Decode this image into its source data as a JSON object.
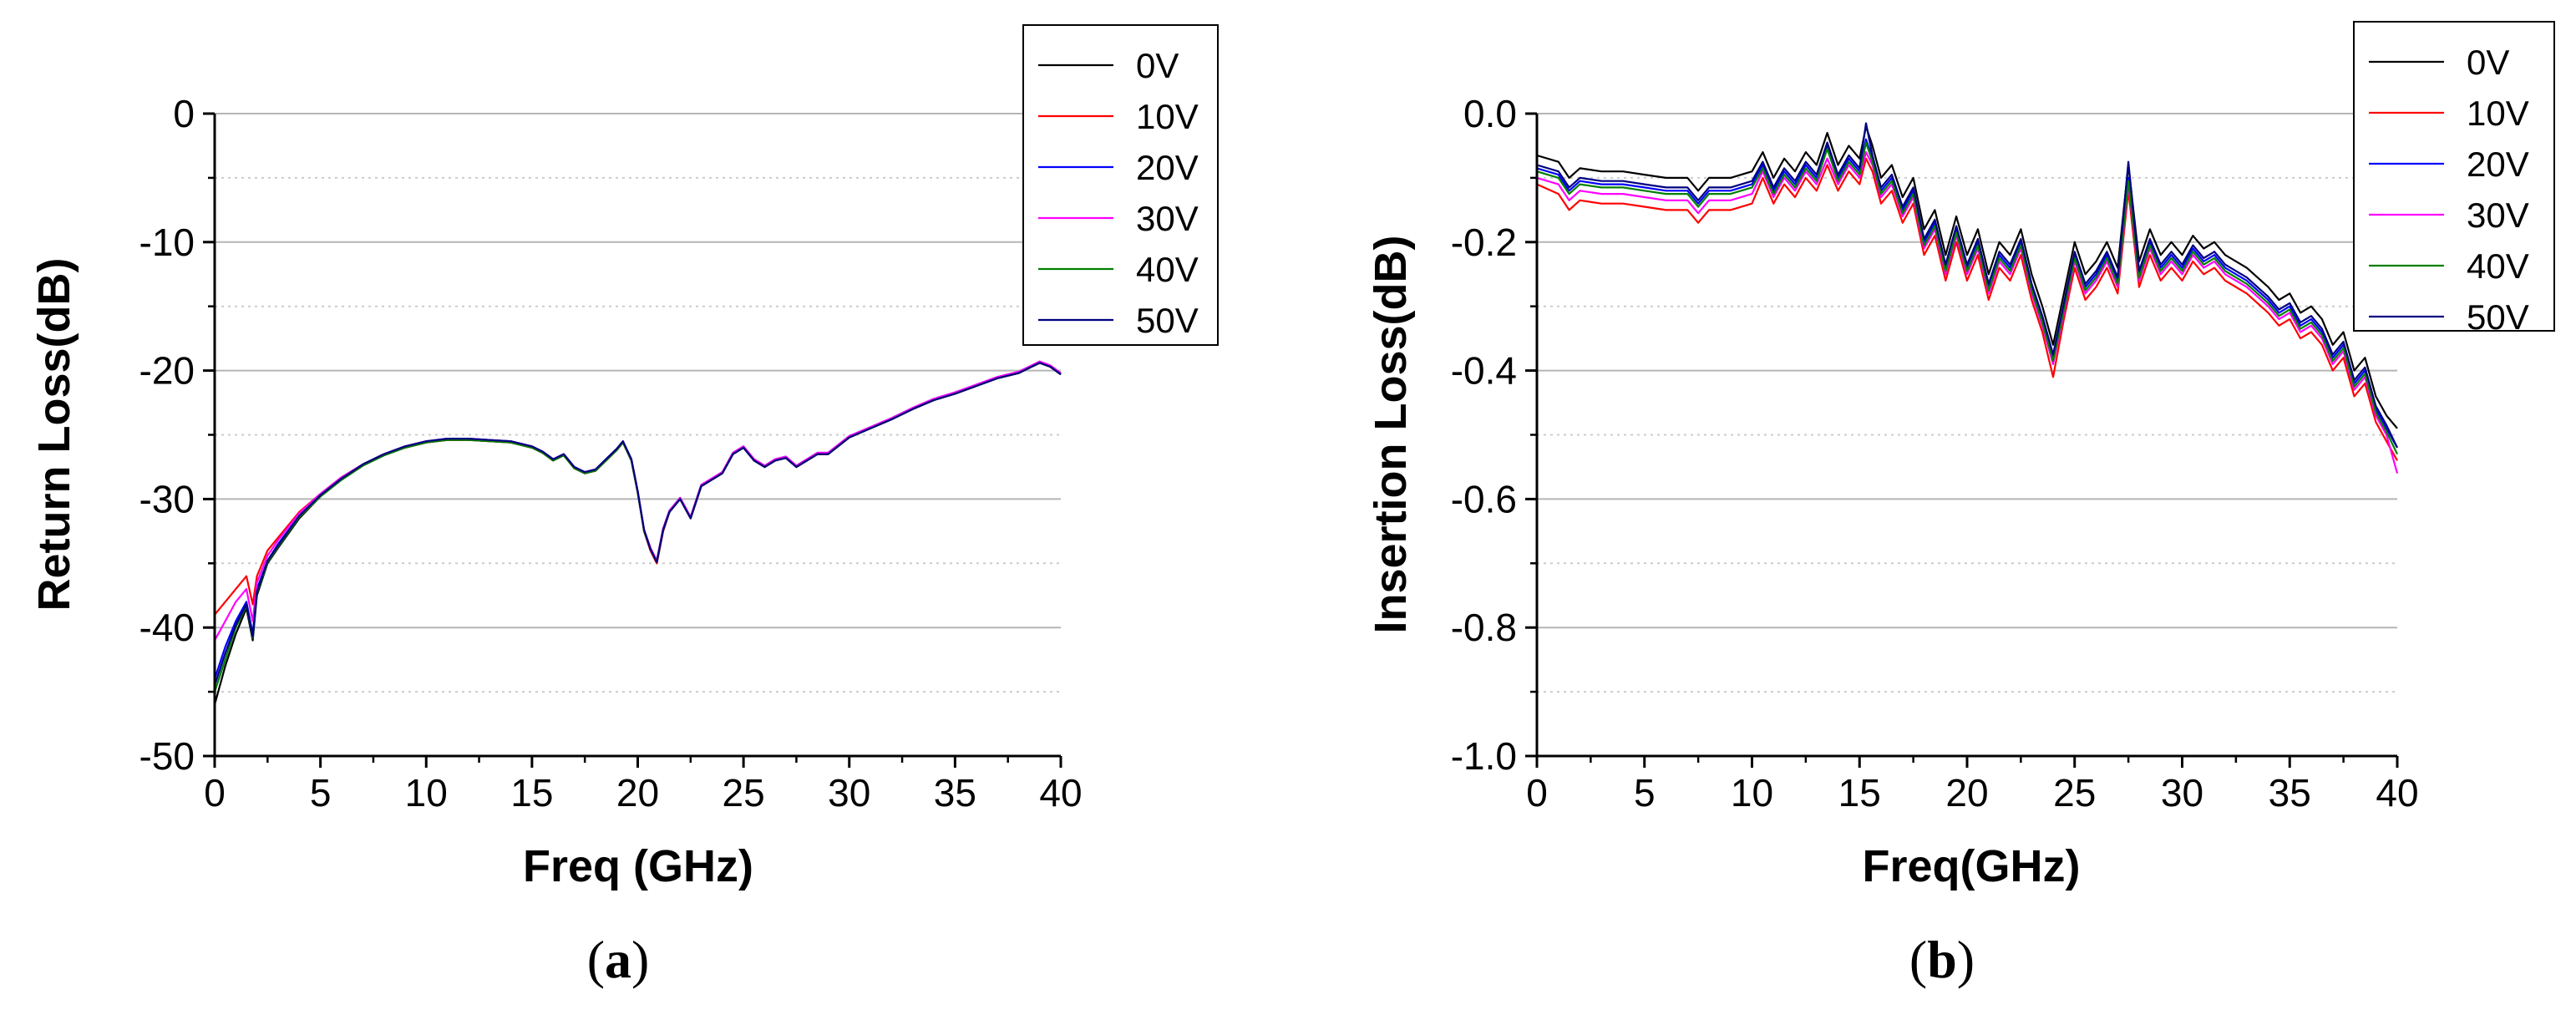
{
  "chart_data": [
    {
      "type": "line",
      "panel_label": "a",
      "xlabel": "Freq (GHz)",
      "ylabel": "Return Loss(dB)",
      "xlim": [
        0,
        40
      ],
      "ylim": [
        -50,
        0
      ],
      "xticks": [
        0,
        5,
        10,
        15,
        20,
        25,
        30,
        35,
        40
      ],
      "yticks": [
        0,
        -10,
        -20,
        -30,
        -40,
        -50
      ],
      "ytick_labels": [
        "0",
        "-10",
        "-20",
        "-30",
        "-40",
        "-50"
      ],
      "grid": true,
      "legend": "top-right",
      "x": [
        0,
        0.5,
        1,
        1.5,
        1.8,
        2,
        2.5,
        3,
        4,
        5,
        6,
        7,
        8,
        9,
        10,
        11,
        12,
        13,
        14,
        15,
        15.5,
        16,
        16.5,
        17,
        17.5,
        18,
        18.5,
        19,
        19.3,
        19.7,
        20,
        20.3,
        20.6,
        20.9,
        21.2,
        21.5,
        22,
        22.5,
        23,
        23.5,
        24,
        24.5,
        25,
        25.5,
        26,
        26.5,
        27,
        27.5,
        28,
        28.5,
        29,
        30,
        31,
        32,
        33,
        34,
        35,
        36,
        37,
        38,
        38.5,
        39,
        39.5,
        40
      ],
      "series": [
        {
          "name": "0V",
          "color": "#000000",
          "values": [
            -46,
            -43,
            -40.5,
            -38.5,
            -41,
            -37.5,
            -35,
            -33.8,
            -31.5,
            -29.8,
            -28.5,
            -27.4,
            -26.6,
            -26,
            -25.6,
            -25.4,
            -25.4,
            -25.5,
            -25.6,
            -26,
            -26.4,
            -27,
            -26.6,
            -27.6,
            -28,
            -27.8,
            -27,
            -26.2,
            -25.6,
            -27,
            -29.5,
            -32.5,
            -34,
            -35,
            -32.5,
            -31,
            -30,
            -31.5,
            -29,
            -28.5,
            -28,
            -26.5,
            -26,
            -27,
            -27.5,
            -27,
            -26.8,
            -27.5,
            -27,
            -26.5,
            -26.5,
            -25.2,
            -24.5,
            -23.8,
            -23,
            -22.3,
            -21.8,
            -21.2,
            -20.6,
            -20.2,
            -19.8,
            -19.4,
            -19.7,
            -20.3
          ]
        },
        {
          "name": "10V",
          "color": "#ff0000",
          "values": [
            -39,
            -38,
            -37,
            -36,
            -38.2,
            -36,
            -34,
            -33,
            -31,
            -29.6,
            -28.3,
            -27.3,
            -26.5,
            -26,
            -25.6,
            -25.4,
            -25.4,
            -25.5,
            -25.6,
            -26,
            -26.4,
            -27,
            -26.6,
            -27.6,
            -28,
            -27.8,
            -27,
            -26.2,
            -25.6,
            -27,
            -29.5,
            -32.5,
            -34,
            -35,
            -32.5,
            -31,
            -30,
            -31.5,
            -29,
            -28.5,
            -28,
            -26.5,
            -26,
            -27,
            -27.5,
            -27,
            -26.8,
            -27.5,
            -27,
            -26.5,
            -26.5,
            -25.2,
            -24.5,
            -23.8,
            -23,
            -22.3,
            -21.8,
            -21.2,
            -20.6,
            -20.2,
            -19.8,
            -19.4,
            -19.7,
            -20.3
          ]
        },
        {
          "name": "20V",
          "color": "#0000ff",
          "values": [
            -44,
            -41.5,
            -39.5,
            -38,
            -40.5,
            -37,
            -34.8,
            -33.5,
            -31.3,
            -29.7,
            -28.4,
            -27.3,
            -26.5,
            -25.9,
            -25.5,
            -25.3,
            -25.3,
            -25.4,
            -25.5,
            -25.9,
            -26.3,
            -26.9,
            -26.5,
            -27.5,
            -27.9,
            -27.7,
            -26.9,
            -26.1,
            -25.5,
            -26.9,
            -29.4,
            -32.4,
            -33.8,
            -34.8,
            -32.3,
            -30.9,
            -29.9,
            -31.4,
            -28.9,
            -28.4,
            -27.9,
            -26.4,
            -25.9,
            -26.9,
            -27.4,
            -26.9,
            -26.7,
            -27.4,
            -26.9,
            -26.4,
            -26.4,
            -25.1,
            -24.4,
            -23.7,
            -22.9,
            -22.2,
            -21.7,
            -21.1,
            -20.5,
            -20.1,
            -19.7,
            -19.3,
            -19.6,
            -20.2
          ]
        },
        {
          "name": "30V",
          "color": "#ff00ff",
          "values": [
            -41,
            -39.5,
            -38,
            -37,
            -39.5,
            -36.5,
            -34.4,
            -33.2,
            -31.1,
            -29.6,
            -28.3,
            -27.3,
            -26.5,
            -25.9,
            -25.5,
            -25.3,
            -25.3,
            -25.4,
            -25.5,
            -25.9,
            -26.3,
            -26.9,
            -26.5,
            -27.5,
            -27.9,
            -27.7,
            -26.9,
            -26.1,
            -25.5,
            -26.9,
            -29.4,
            -32.4,
            -33.8,
            -34.8,
            -32.3,
            -30.9,
            -29.9,
            -31.4,
            -28.9,
            -28.4,
            -27.9,
            -26.4,
            -25.9,
            -26.9,
            -27.4,
            -26.9,
            -26.7,
            -27.4,
            -26.9,
            -26.4,
            -26.4,
            -25.1,
            -24.4,
            -23.7,
            -22.9,
            -22.2,
            -21.7,
            -21.1,
            -20.5,
            -20.1,
            -19.7,
            -19.3,
            -19.6,
            -20.2
          ]
        },
        {
          "name": "40V",
          "color": "#008000",
          "values": [
            -45,
            -42.5,
            -40,
            -38.3,
            -40.8,
            -37.3,
            -34.9,
            -33.7,
            -31.4,
            -29.8,
            -28.5,
            -27.4,
            -26.6,
            -26,
            -25.6,
            -25.4,
            -25.4,
            -25.5,
            -25.6,
            -26,
            -26.4,
            -27,
            -26.6,
            -27.6,
            -28,
            -27.8,
            -27,
            -26.2,
            -25.6,
            -27,
            -29.5,
            -32.5,
            -33.9,
            -34.9,
            -32.4,
            -31,
            -30,
            -31.5,
            -29,
            -28.5,
            -28,
            -26.5,
            -26,
            -27,
            -27.5,
            -27,
            -26.8,
            -27.5,
            -27,
            -26.5,
            -26.5,
            -25.2,
            -24.5,
            -23.8,
            -23,
            -22.3,
            -21.8,
            -21.2,
            -20.6,
            -20.2,
            -19.8,
            -19.4,
            -19.7,
            -20.3
          ]
        },
        {
          "name": "50V",
          "color": "#000080",
          "values": [
            -44.5,
            -42,
            -39.8,
            -38.2,
            -40.7,
            -37.2,
            -34.8,
            -33.6,
            -31.3,
            -29.7,
            -28.4,
            -27.3,
            -26.5,
            -25.9,
            -25.5,
            -25.3,
            -25.3,
            -25.4,
            -25.5,
            -25.9,
            -26.3,
            -26.9,
            -26.5,
            -27.5,
            -27.9,
            -27.7,
            -26.9,
            -26.1,
            -25.5,
            -26.9,
            -29.4,
            -32.4,
            -33.9,
            -34.9,
            -32.4,
            -31,
            -30,
            -31.5,
            -29,
            -28.5,
            -28,
            -26.5,
            -26,
            -27,
            -27.5,
            -27,
            -26.8,
            -27.5,
            -27,
            -26.5,
            -26.5,
            -25.2,
            -24.5,
            -23.8,
            -23,
            -22.3,
            -21.8,
            -21.2,
            -20.6,
            -20.2,
            -19.8,
            -19.4,
            -19.7,
            -20.3
          ]
        }
      ]
    },
    {
      "type": "line",
      "panel_label": "b",
      "xlabel": "Freq(GHz)",
      "ylabel": "Insertion Loss(dB)",
      "xlim": [
        0,
        40
      ],
      "ylim": [
        -1.0,
        0.0
      ],
      "xticks": [
        0,
        5,
        10,
        15,
        20,
        25,
        30,
        35,
        40
      ],
      "yticks": [
        0,
        -0.2,
        -0.4,
        -0.6,
        -0.8,
        -1.0
      ],
      "ytick_labels": [
        "0.0",
        "-0.2",
        "-0.4",
        "-0.6",
        "-0.8",
        "-1.0"
      ],
      "grid": true,
      "legend": "top-right",
      "x": [
        0,
        1,
        1.5,
        2,
        3,
        4,
        5,
        6,
        7,
        7.5,
        8,
        9,
        10,
        10.5,
        11,
        11.5,
        12,
        12.5,
        13,
        13.5,
        14,
        14.5,
        15,
        15.3,
        15.6,
        16,
        16.5,
        17,
        17.5,
        18,
        18.5,
        19,
        19.5,
        20,
        20.5,
        21,
        21.5,
        22,
        22.5,
        23,
        23.5,
        24,
        24.5,
        25,
        25.5,
        26,
        26.5,
        27,
        27.5,
        28,
        28.5,
        29,
        29.5,
        30,
        30.5,
        31,
        31.5,
        32,
        33,
        34,
        34.5,
        35,
        35.5,
        36,
        36.5,
        37,
        37.5,
        38,
        38.5,
        39,
        39.5,
        40
      ],
      "series": [
        {
          "name": "0V",
          "color": "#000000",
          "values": [
            -0.065,
            -0.075,
            -0.1,
            -0.085,
            -0.09,
            -0.09,
            -0.095,
            -0.1,
            -0.1,
            -0.12,
            -0.1,
            -0.1,
            -0.09,
            -0.06,
            -0.1,
            -0.07,
            -0.09,
            -0.06,
            -0.08,
            -0.03,
            -0.08,
            -0.05,
            -0.07,
            -0.02,
            -0.05,
            -0.1,
            -0.08,
            -0.13,
            -0.1,
            -0.18,
            -0.15,
            -0.22,
            -0.16,
            -0.22,
            -0.18,
            -0.25,
            -0.2,
            -0.22,
            -0.18,
            -0.25,
            -0.3,
            -0.36,
            -0.28,
            -0.2,
            -0.25,
            -0.23,
            -0.2,
            -0.24,
            -0.08,
            -0.23,
            -0.18,
            -0.22,
            -0.2,
            -0.22,
            -0.19,
            -0.21,
            -0.2,
            -0.22,
            -0.24,
            -0.27,
            -0.29,
            -0.28,
            -0.31,
            -0.3,
            -0.32,
            -0.36,
            -0.34,
            -0.4,
            -0.38,
            -0.44,
            -0.47,
            -0.49
          ]
        },
        {
          "name": "10V",
          "color": "#ff0000",
          "values": [
            -0.11,
            -0.125,
            -0.15,
            -0.135,
            -0.14,
            -0.14,
            -0.145,
            -0.15,
            -0.15,
            -0.17,
            -0.15,
            -0.15,
            -0.14,
            -0.1,
            -0.14,
            -0.11,
            -0.13,
            -0.1,
            -0.12,
            -0.08,
            -0.12,
            -0.09,
            -0.11,
            -0.07,
            -0.09,
            -0.14,
            -0.12,
            -0.17,
            -0.14,
            -0.22,
            -0.19,
            -0.26,
            -0.2,
            -0.26,
            -0.22,
            -0.29,
            -0.24,
            -0.26,
            -0.22,
            -0.29,
            -0.34,
            -0.41,
            -0.32,
            -0.24,
            -0.29,
            -0.27,
            -0.24,
            -0.28,
            -0.12,
            -0.27,
            -0.22,
            -0.26,
            -0.24,
            -0.26,
            -0.23,
            -0.25,
            -0.24,
            -0.26,
            -0.28,
            -0.31,
            -0.33,
            -0.32,
            -0.35,
            -0.34,
            -0.36,
            -0.4,
            -0.38,
            -0.44,
            -0.42,
            -0.48,
            -0.51,
            -0.54
          ]
        },
        {
          "name": "20V",
          "color": "#0000ff",
          "values": [
            -0.085,
            -0.095,
            -0.12,
            -0.105,
            -0.11,
            -0.11,
            -0.115,
            -0.12,
            -0.12,
            -0.14,
            -0.12,
            -0.12,
            -0.11,
            -0.08,
            -0.12,
            -0.09,
            -0.11,
            -0.08,
            -0.1,
            -0.05,
            -0.1,
            -0.07,
            -0.09,
            -0.04,
            -0.07,
            -0.12,
            -0.1,
            -0.15,
            -0.12,
            -0.2,
            -0.17,
            -0.24,
            -0.18,
            -0.24,
            -0.2,
            -0.27,
            -0.22,
            -0.24,
            -0.2,
            -0.27,
            -0.32,
            -0.38,
            -0.3,
            -0.22,
            -0.27,
            -0.25,
            -0.22,
            -0.26,
            -0.1,
            -0.25,
            -0.2,
            -0.24,
            -0.22,
            -0.24,
            -0.21,
            -0.23,
            -0.22,
            -0.24,
            -0.26,
            -0.29,
            -0.31,
            -0.3,
            -0.33,
            -0.32,
            -0.34,
            -0.38,
            -0.36,
            -0.42,
            -0.4,
            -0.46,
            -0.49,
            -0.52
          ]
        },
        {
          "name": "30V",
          "color": "#ff00ff",
          "values": [
            -0.1,
            -0.11,
            -0.135,
            -0.12,
            -0.125,
            -0.125,
            -0.13,
            -0.135,
            -0.135,
            -0.155,
            -0.135,
            -0.135,
            -0.125,
            -0.09,
            -0.13,
            -0.1,
            -0.12,
            -0.09,
            -0.11,
            -0.07,
            -0.11,
            -0.08,
            -0.1,
            -0.06,
            -0.08,
            -0.13,
            -0.11,
            -0.16,
            -0.13,
            -0.21,
            -0.18,
            -0.25,
            -0.19,
            -0.25,
            -0.21,
            -0.28,
            -0.23,
            -0.25,
            -0.21,
            -0.28,
            -0.33,
            -0.39,
            -0.31,
            -0.23,
            -0.28,
            -0.26,
            -0.23,
            -0.27,
            -0.11,
            -0.26,
            -0.21,
            -0.25,
            -0.23,
            -0.25,
            -0.22,
            -0.24,
            -0.23,
            -0.25,
            -0.27,
            -0.3,
            -0.32,
            -0.31,
            -0.34,
            -0.33,
            -0.35,
            -0.39,
            -0.37,
            -0.43,
            -0.41,
            -0.47,
            -0.5,
            -0.56
          ]
        },
        {
          "name": "40V",
          "color": "#008000",
          "values": [
            -0.09,
            -0.1,
            -0.125,
            -0.11,
            -0.115,
            -0.115,
            -0.12,
            -0.125,
            -0.125,
            -0.145,
            -0.125,
            -0.125,
            -0.115,
            -0.085,
            -0.125,
            -0.095,
            -0.115,
            -0.085,
            -0.105,
            -0.055,
            -0.105,
            -0.075,
            -0.095,
            -0.045,
            -0.075,
            -0.125,
            -0.105,
            -0.155,
            -0.125,
            -0.205,
            -0.175,
            -0.245,
            -0.185,
            -0.245,
            -0.205,
            -0.275,
            -0.225,
            -0.245,
            -0.205,
            -0.275,
            -0.325,
            -0.385,
            -0.305,
            -0.225,
            -0.275,
            -0.255,
            -0.225,
            -0.265,
            -0.105,
            -0.255,
            -0.205,
            -0.245,
            -0.225,
            -0.245,
            -0.215,
            -0.235,
            -0.225,
            -0.245,
            -0.265,
            -0.295,
            -0.315,
            -0.305,
            -0.335,
            -0.325,
            -0.345,
            -0.385,
            -0.365,
            -0.425,
            -0.405,
            -0.465,
            -0.495,
            -0.53
          ]
        },
        {
          "name": "50V",
          "color": "#000080",
          "values": [
            -0.08,
            -0.09,
            -0.115,
            -0.1,
            -0.105,
            -0.105,
            -0.11,
            -0.115,
            -0.115,
            -0.135,
            -0.115,
            -0.115,
            -0.105,
            -0.075,
            -0.115,
            -0.085,
            -0.105,
            -0.075,
            -0.095,
            -0.045,
            -0.095,
            -0.065,
            -0.085,
            -0.015,
            -0.065,
            -0.115,
            -0.095,
            -0.145,
            -0.115,
            -0.195,
            -0.165,
            -0.235,
            -0.175,
            -0.235,
            -0.195,
            -0.265,
            -0.215,
            -0.235,
            -0.195,
            -0.265,
            -0.315,
            -0.375,
            -0.295,
            -0.215,
            -0.265,
            -0.245,
            -0.215,
            -0.255,
            -0.075,
            -0.245,
            -0.195,
            -0.235,
            -0.215,
            -0.235,
            -0.205,
            -0.225,
            -0.215,
            -0.235,
            -0.255,
            -0.285,
            -0.305,
            -0.295,
            -0.325,
            -0.315,
            -0.335,
            -0.375,
            -0.355,
            -0.415,
            -0.395,
            -0.455,
            -0.485,
            -0.52
          ]
        }
      ]
    }
  ]
}
